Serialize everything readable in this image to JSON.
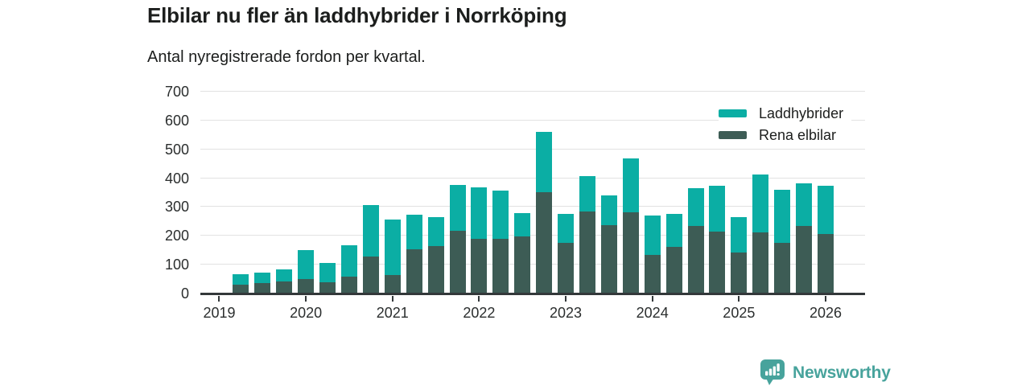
{
  "header": {
    "title": "Elbilar nu fler än laddhybrider i Norrköping",
    "subtitle": "Antal nyregistrerade fordon per kvartal."
  },
  "legend": {
    "items": [
      {
        "label": "Laddhybrider",
        "color": "#0BAEA4"
      },
      {
        "label": "Rena elbilar",
        "color": "#3D5C55"
      }
    ]
  },
  "chart_data": {
    "type": "bar",
    "stacked": true,
    "title": "Elbilar nu fler än laddhybrider i Norrköping",
    "subtitle": "Antal nyregistrerade fordon per kvartal.",
    "xlabel": "",
    "ylabel": "",
    "ylim": [
      0,
      700
    ],
    "yticks": [
      0,
      100,
      200,
      300,
      400,
      500,
      600,
      700
    ],
    "xticks": [
      "2019",
      "2020",
      "2021",
      "2022",
      "2023",
      "2024",
      "2025",
      "2026"
    ],
    "grid": true,
    "legend_position": "top-right",
    "categories": [
      "2019 Q2",
      "2019 Q3",
      "2019 Q4",
      "2020 Q1",
      "2020 Q2",
      "2020 Q3",
      "2020 Q4",
      "2021 Q1",
      "2021 Q2",
      "2021 Q3",
      "2021 Q4",
      "2022 Q1",
      "2022 Q2",
      "2022 Q3",
      "2022 Q4",
      "2023 Q1",
      "2023 Q2",
      "2023 Q3",
      "2023 Q4",
      "2024 Q1",
      "2024 Q2",
      "2024 Q3",
      "2024 Q4",
      "2025 Q1",
      "2025 Q2",
      "2025 Q3",
      "2025 Q4",
      "2026 Q1"
    ],
    "series": [
      {
        "name": "Laddhybrider",
        "color": "#0BAEA4",
        "stack_order": "top",
        "values": [
          38,
          38,
          42,
          102,
          67,
          108,
          180,
          191,
          121,
          100,
          160,
          179,
          169,
          79,
          210,
          99,
          121,
          102,
          185,
          135,
          116,
          133,
          160,
          124,
          202,
          184,
          147,
          166
        ]
      },
      {
        "name": "Rena elbilar",
        "color": "#3D5C55",
        "stack_order": "bottom",
        "values": [
          30,
          35,
          41,
          50,
          39,
          60,
          128,
          65,
          153,
          165,
          217,
          189,
          189,
          199,
          352,
          177,
          285,
          238,
          283,
          135,
          161,
          233,
          215,
          142,
          212,
          175,
          235,
          207
        ]
      }
    ],
    "totals": [
      68,
      73,
      83,
      152,
      106,
      168,
      308,
      256,
      274,
      265,
      377,
      368,
      358,
      278,
      562,
      276,
      406,
      340,
      468,
      270,
      277,
      366,
      375,
      266,
      414,
      359,
      382,
      373
    ]
  },
  "footer": {
    "brand": "Newsworthy",
    "brand_color": "#47A39C",
    "logo_icon": "bar-chart-speech-bubble-icon"
  }
}
